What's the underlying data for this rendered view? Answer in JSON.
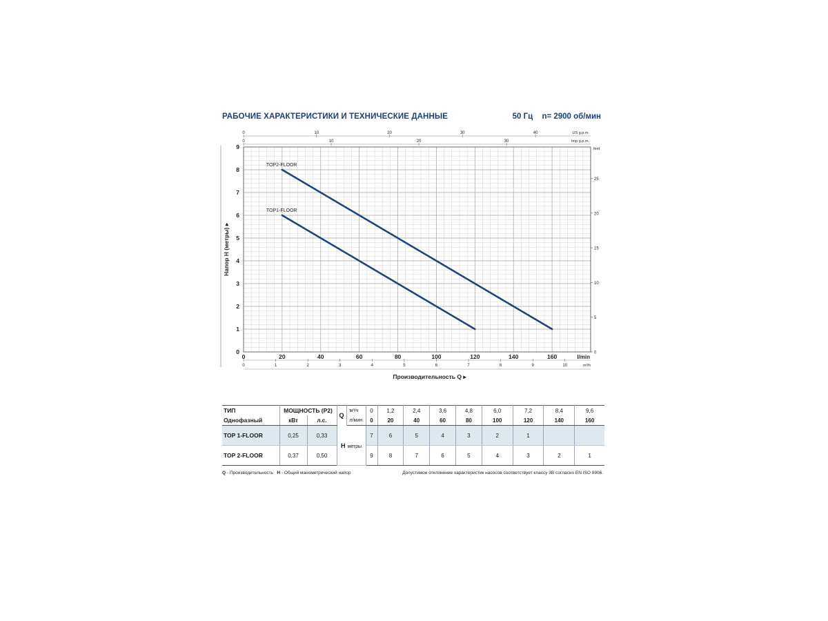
{
  "header": {
    "title": "РАБОЧИЕ ХАРАКТЕРИСТИКИ И ТЕХНИЧЕСКИЕ ДАННЫЕ",
    "freq": "50 Гц",
    "speed": "n= 2900 об/мин"
  },
  "chart_data": {
    "type": "line",
    "ylabel": "Напор H (метры)",
    "xlabel": "Производительность Q",
    "x_unit": "l/min",
    "xlim": [
      0,
      180
    ],
    "ylim": [
      0,
      9
    ],
    "x_ticks": [
      0,
      20,
      40,
      60,
      80,
      100,
      120,
      140,
      160
    ],
    "y_ticks": [
      0,
      1,
      2,
      3,
      4,
      5,
      6,
      7,
      8,
      9
    ],
    "right_axis": {
      "unit": "feet",
      "ticks": [
        0,
        5,
        10,
        15,
        20,
        25
      ]
    },
    "top_axis_us": {
      "unit": "US g.p.m.",
      "ticks": [
        0,
        10,
        20,
        30,
        40
      ]
    },
    "top_axis_imp": {
      "unit": "Imp g.p.m.",
      "ticks": [
        0,
        10,
        20,
        30
      ]
    },
    "bottom_axis_m3h": {
      "unit": "m³/h",
      "ticks": [
        0,
        1,
        2,
        3,
        4,
        5,
        6,
        7,
        8,
        9,
        10
      ]
    },
    "grid": true,
    "color": "#1e4480",
    "series": [
      {
        "name": "TOP2-FLOOR",
        "x": [
          20,
          160
        ],
        "y": [
          8,
          1
        ]
      },
      {
        "name": "TOP1-FLOOR",
        "x": [
          20,
          120
        ],
        "y": [
          6,
          1
        ]
      }
    ]
  },
  "table": {
    "type_label": "ТИП",
    "phase_label": "Однофазный",
    "power_label": "МОЩНОСТЬ (P2)",
    "kw_label": "кВт",
    "hp_label": "л.с.",
    "q_label": "Q",
    "m3h_label": "м³/ч",
    "lmin_label": "л/мин",
    "h_label": "H",
    "h_unit": "метры",
    "q_m3h": [
      "0",
      "1,2",
      "2,4",
      "3,6",
      "4,8",
      "6,0",
      "7,2",
      "8,4",
      "9,6"
    ],
    "q_lmin": [
      "0",
      "20",
      "40",
      "60",
      "80",
      "100",
      "120",
      "140",
      "160"
    ],
    "rows": [
      {
        "model": "TOP 1-FLOOR",
        "kw": "0,25",
        "hp": "0,33",
        "h": [
          "7",
          "6",
          "5",
          "4",
          "3",
          "2",
          "1",
          "",
          ""
        ]
      },
      {
        "model": "TOP 2-FLOOR",
        "kw": "0,37",
        "hp": "0,50",
        "h": [
          "9",
          "8",
          "7",
          "6",
          "5",
          "4",
          "3",
          "2",
          "1"
        ]
      }
    ]
  },
  "footer": {
    "q_key": "Q",
    "q_desc": "- Производительность",
    "h_key": "H",
    "h_desc": "- Общий манометрический напор",
    "note": "Допустимое отклонение характеристик насосов соответствует классу 3B согласно EN ISO 9906."
  }
}
